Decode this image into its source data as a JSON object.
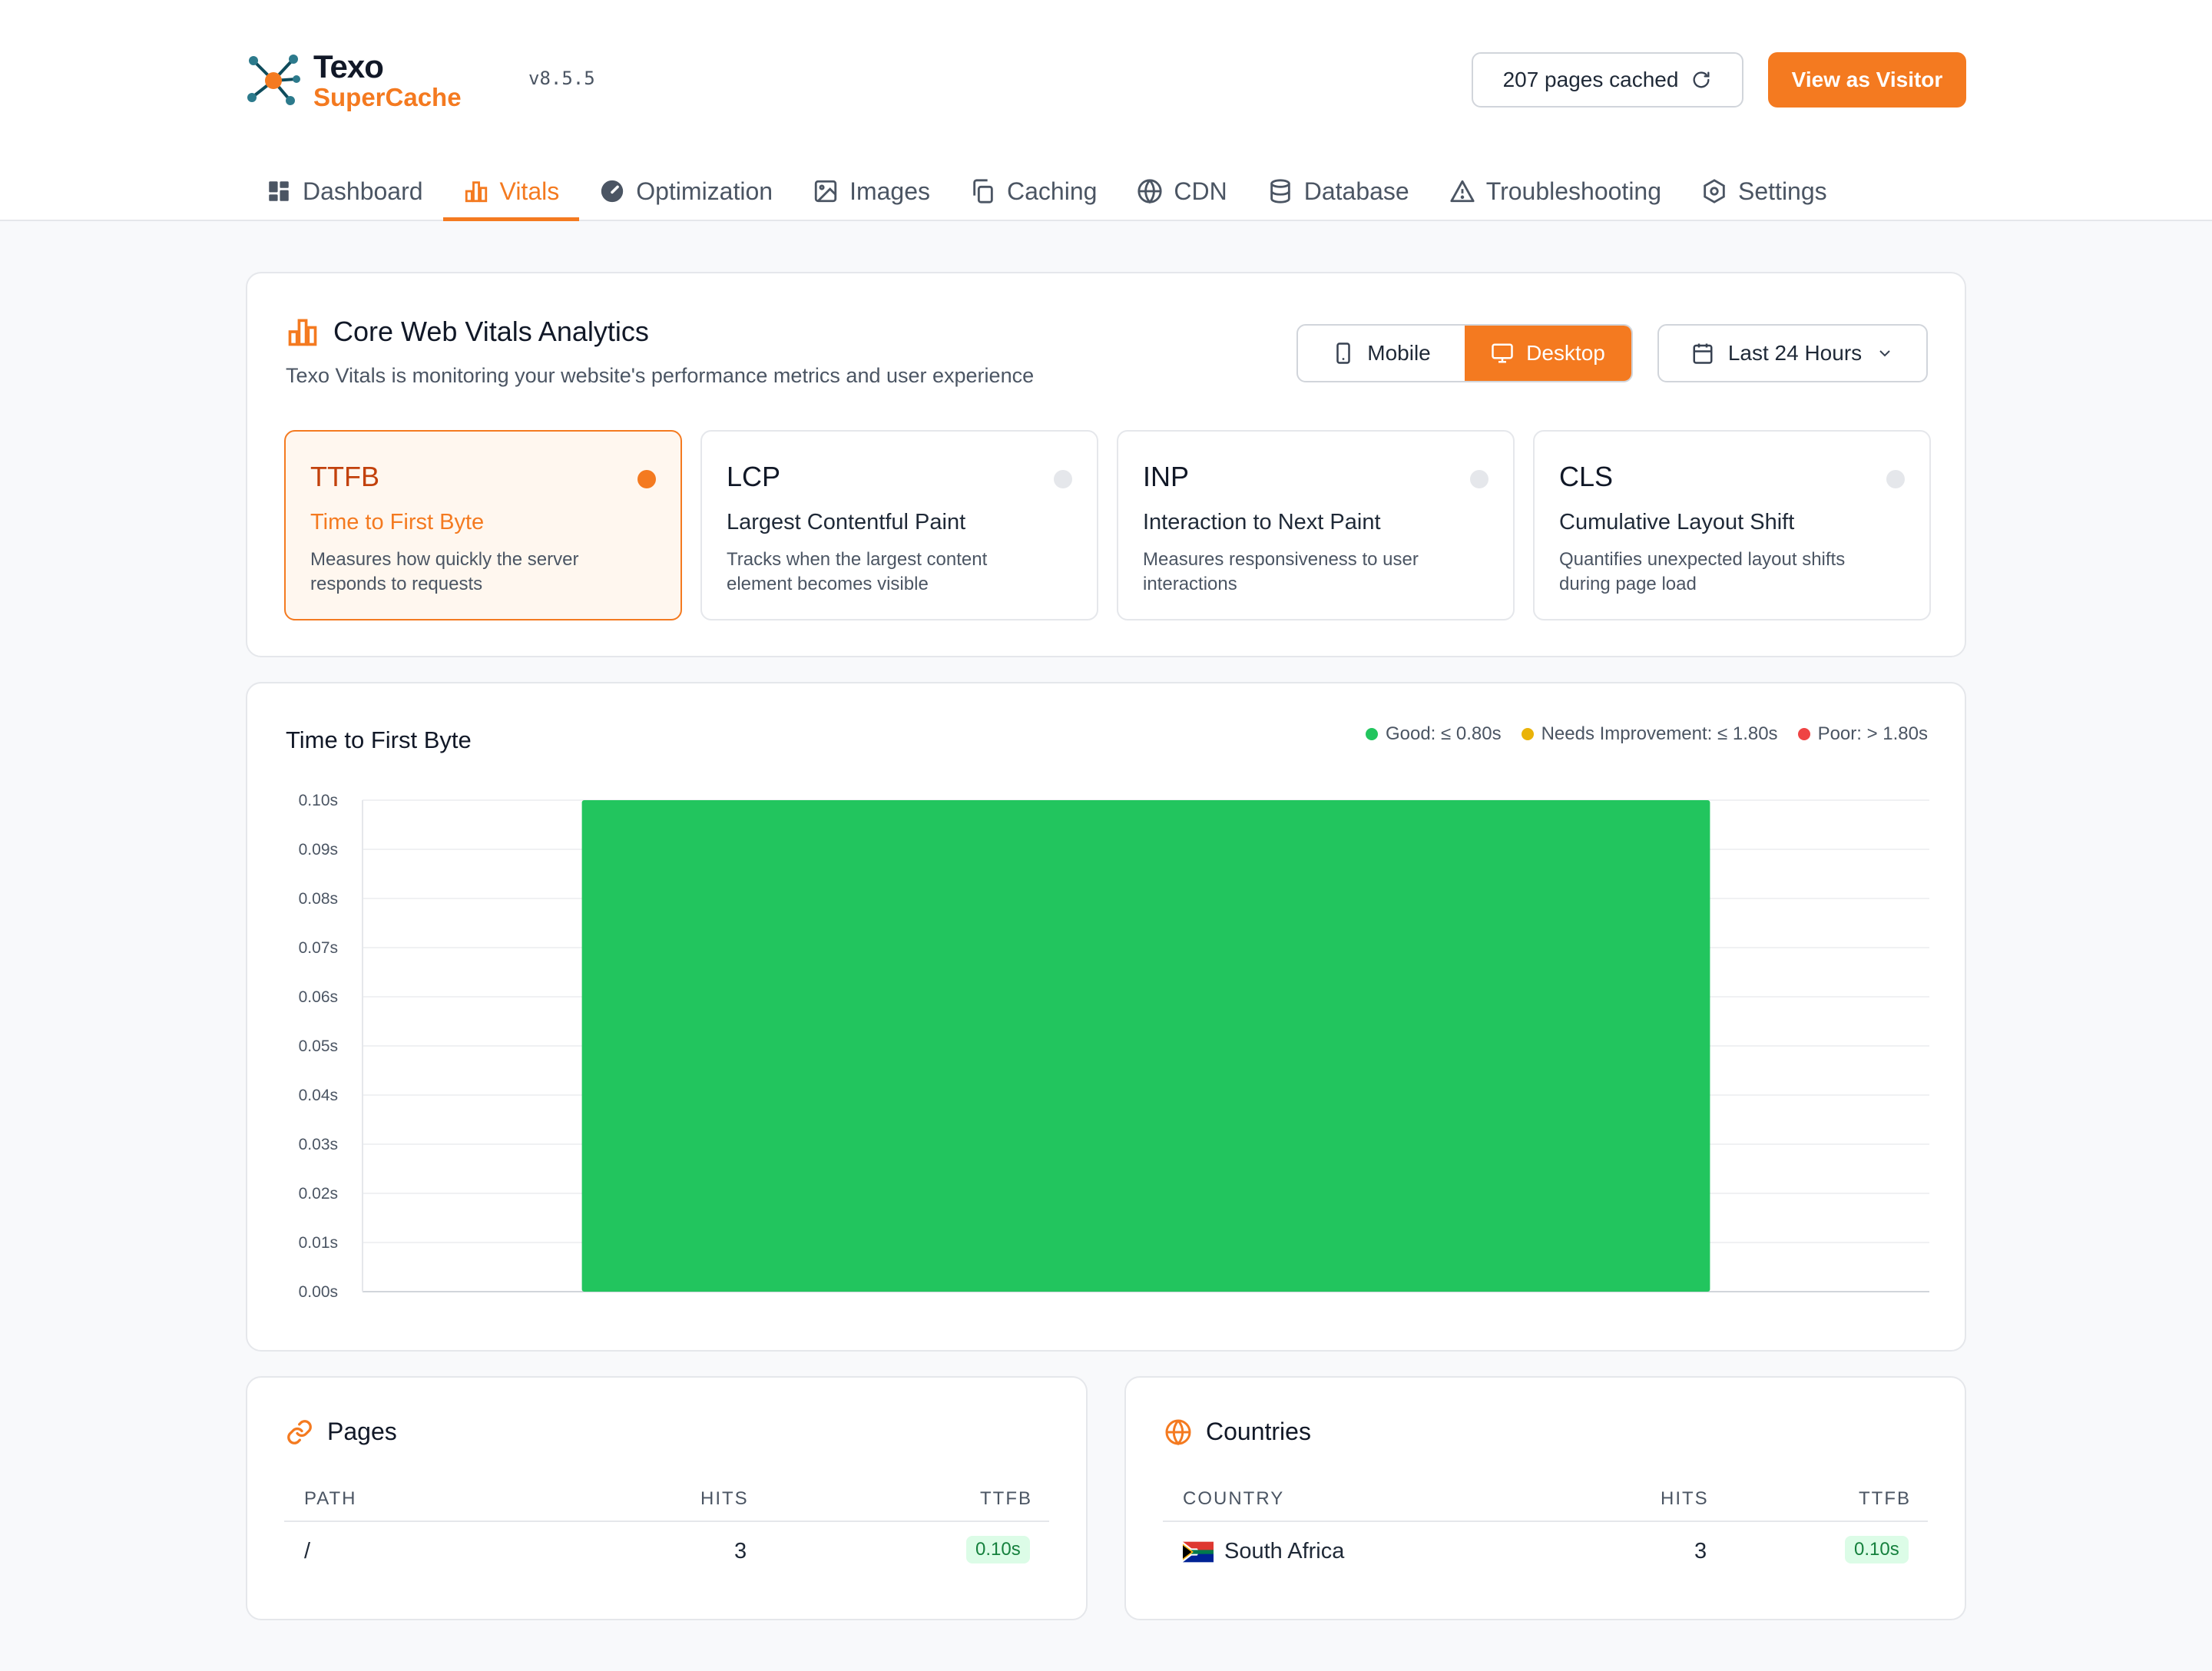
{
  "app": {
    "logo_line1": "Texo",
    "logo_line2": "SuperCache",
    "version": "v8.5.5",
    "cached_label": "207 pages cached",
    "visitor_label": "View as Visitor",
    "accent_color": "#f47a20"
  },
  "nav": [
    {
      "label": "Dashboard",
      "icon": "grid-icon"
    },
    {
      "label": "Vitals",
      "icon": "bar-chart-icon",
      "active": true
    },
    {
      "label": "Optimization",
      "icon": "gauge-icon"
    },
    {
      "label": "Images",
      "icon": "image-icon"
    },
    {
      "label": "Caching",
      "icon": "copy-icon"
    },
    {
      "label": "CDN",
      "icon": "globe-icon"
    },
    {
      "label": "Database",
      "icon": "database-icon"
    },
    {
      "label": "Troubleshooting",
      "icon": "warning-icon"
    },
    {
      "label": "Settings",
      "icon": "gear-icon"
    }
  ],
  "vitals": {
    "title": "Core Web Vitals Analytics",
    "subtitle": "Texo Vitals is monitoring your website's performance metrics and user experience",
    "device_mobile": "Mobile",
    "device_desktop": "Desktop",
    "device_selected": "Desktop",
    "range_label": "Last 24 Hours",
    "metrics": [
      {
        "abbr": "TTFB",
        "name": "Time to First Byte",
        "desc": "Measures how quickly the server responds to requests",
        "active": true
      },
      {
        "abbr": "LCP",
        "name": "Largest Contentful Paint",
        "desc": "Tracks when the largest content element becomes visible"
      },
      {
        "abbr": "INP",
        "name": "Interaction to Next Paint",
        "desc": "Measures responsiveness to user interactions"
      },
      {
        "abbr": "CLS",
        "name": "Cumulative Layout Shift",
        "desc": "Quantifies unexpected layout shifts during page load"
      }
    ]
  },
  "chart": {
    "title": "Time to First Byte",
    "legend": [
      {
        "label": "Good: ≤ 0.80s",
        "color": "#22c55e"
      },
      {
        "label": "Needs Improvement: ≤ 1.80s",
        "color": "#eab308"
      },
      {
        "label": "Poor: > 1.80s",
        "color": "#ef4444"
      }
    ]
  },
  "chart_data": {
    "type": "bar",
    "title": "Time to First Byte",
    "categories": [
      ""
    ],
    "values": [
      0.1
    ],
    "bar_color": "#22c55e",
    "ylim": [
      0,
      0.1
    ],
    "yticks": [
      "0.00s",
      "0.01s",
      "0.02s",
      "0.03s",
      "0.04s",
      "0.05s",
      "0.06s",
      "0.07s",
      "0.08s",
      "0.09s",
      "0.10s"
    ],
    "grid": true
  },
  "pages": {
    "title": "Pages",
    "headers": [
      "PATH",
      "HITS",
      "TTFB"
    ],
    "rows": [
      {
        "path": "/",
        "hits": "3",
        "ttfb": "0.10s"
      }
    ]
  },
  "countries": {
    "title": "Countries",
    "headers": [
      "COUNTRY",
      "HITS",
      "TTFB"
    ],
    "rows": [
      {
        "country": "South Africa",
        "hits": "3",
        "ttfb": "0.10s"
      }
    ]
  }
}
